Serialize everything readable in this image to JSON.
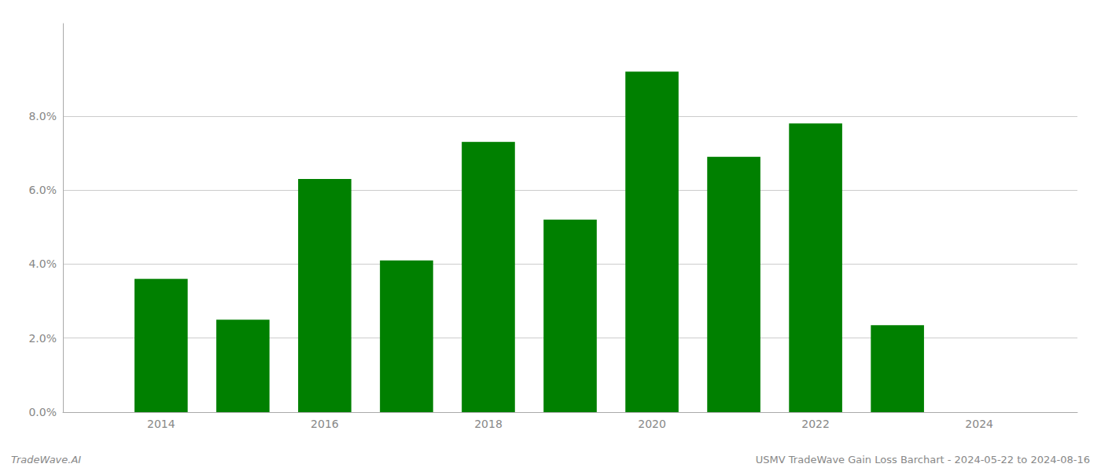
{
  "chart_data": {
    "type": "bar",
    "x": [
      2014,
      2015,
      2016,
      2017,
      2018,
      2019,
      2020,
      2021,
      2022,
      2023
    ],
    "values": [
      0.036,
      0.025,
      0.063,
      0.041,
      0.073,
      0.052,
      0.092,
      0.069,
      0.078,
      0.0235
    ],
    "color": "#008000",
    "xlim": [
      2012.8,
      2025.2
    ],
    "xticks": [
      2014,
      2016,
      2018,
      2020,
      2022,
      2024
    ],
    "ylim": [
      0,
      0.105
    ],
    "yticks": [
      {
        "value": 0.0,
        "label": "0.0%"
      },
      {
        "value": 0.02,
        "label": "2.0%"
      },
      {
        "value": 0.04,
        "label": "4.0%"
      },
      {
        "value": 0.06,
        "label": "6.0%"
      },
      {
        "value": 0.08,
        "label": "8.0%"
      }
    ],
    "grid": true,
    "annotations": [
      "TradeWave.AI",
      "USMV TradeWave Gain Loss Barchart - 2024-05-22 to 2024-08-16"
    ]
  }
}
